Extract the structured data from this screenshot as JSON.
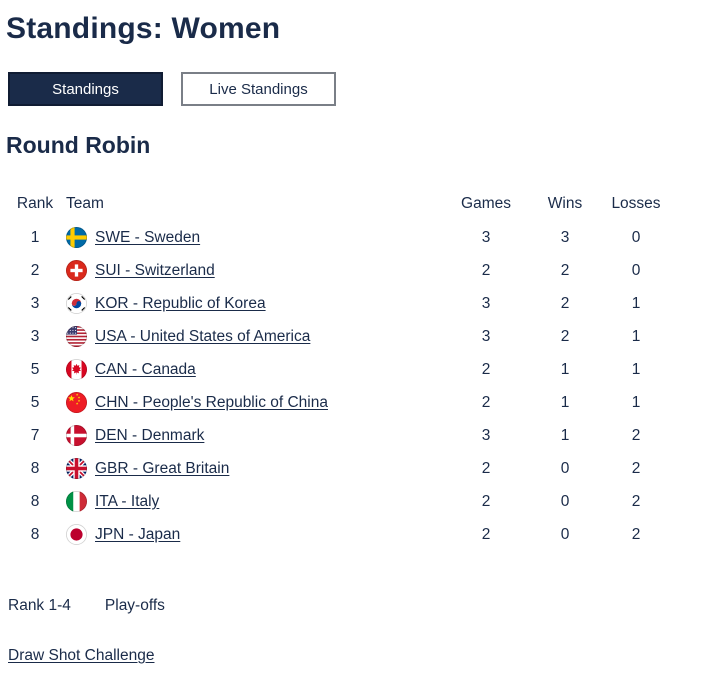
{
  "page": {
    "title": "Standings: Women"
  },
  "tabs": {
    "standings": "Standings",
    "live_standings": "Live Standings"
  },
  "section": {
    "heading": "Round Robin"
  },
  "table": {
    "columns": [
      "Rank",
      "Team",
      "Games",
      "Wins",
      "Losses"
    ],
    "rows": [
      {
        "rank": "1",
        "code": "SWE",
        "flag": "sweden-flag-icon",
        "team": "SWE - Sweden",
        "games": "3",
        "wins": "3",
        "losses": "0"
      },
      {
        "rank": "2",
        "code": "SUI",
        "flag": "switzerland-flag-icon",
        "team": "SUI - Switzerland",
        "games": "2",
        "wins": "2",
        "losses": "0"
      },
      {
        "rank": "3",
        "code": "KOR",
        "flag": "korea-flag-icon",
        "team": "KOR - Republic of Korea",
        "games": "3",
        "wins": "2",
        "losses": "1"
      },
      {
        "rank": "3",
        "code": "USA",
        "flag": "usa-flag-icon",
        "team": "USA - United States of America",
        "games": "3",
        "wins": "2",
        "losses": "1"
      },
      {
        "rank": "5",
        "code": "CAN",
        "flag": "canada-flag-icon",
        "team": "CAN - Canada",
        "games": "2",
        "wins": "1",
        "losses": "1"
      },
      {
        "rank": "5",
        "code": "CHN",
        "flag": "china-flag-icon",
        "team": "CHN - People's Republic of China",
        "games": "2",
        "wins": "1",
        "losses": "1"
      },
      {
        "rank": "7",
        "code": "DEN",
        "flag": "denmark-flag-icon",
        "team": "DEN - Denmark",
        "games": "3",
        "wins": "1",
        "losses": "2"
      },
      {
        "rank": "8",
        "code": "GBR",
        "flag": "great-britain-flag-icon",
        "team": "GBR - Great Britain",
        "games": "2",
        "wins": "0",
        "losses": "2"
      },
      {
        "rank": "8",
        "code": "ITA",
        "flag": "italy-flag-icon",
        "team": "ITA - Italy",
        "games": "2",
        "wins": "0",
        "losses": "2"
      },
      {
        "rank": "8",
        "code": "JPN",
        "flag": "japan-flag-icon",
        "team": "JPN - Japan",
        "games": "2",
        "wins": "0",
        "losses": "2"
      }
    ]
  },
  "legend": {
    "rank_range": "Rank 1-4",
    "label": "Play-offs"
  },
  "links": {
    "draw_shot_challenge": "Draw Shot Challenge"
  },
  "colors": {
    "navy": "#1a2b49",
    "active_tab_bg": "#1a2b49",
    "active_tab_text": "#ffffff",
    "inactive_tab_border": "#7a7f87"
  }
}
